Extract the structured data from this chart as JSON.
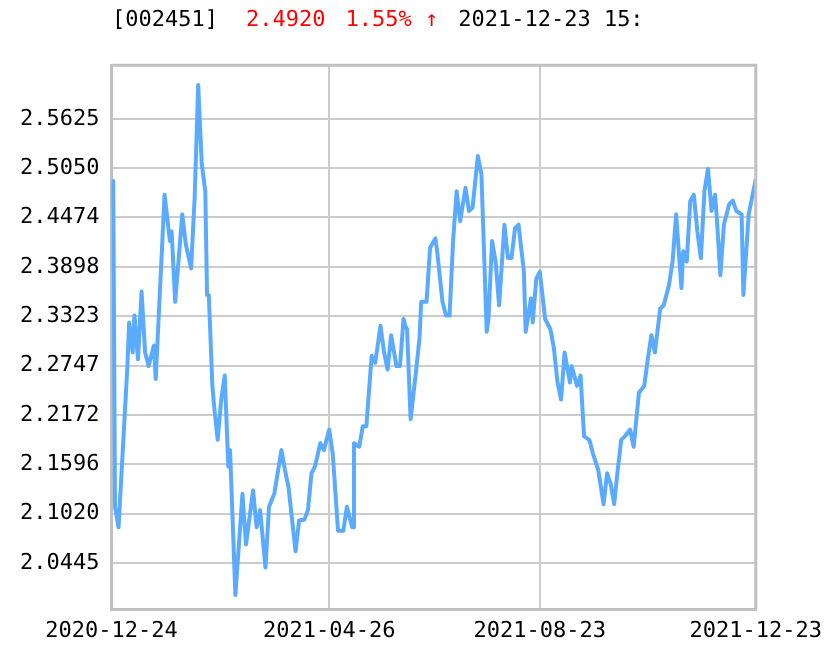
{
  "chart_data": {
    "type": "line",
    "title": "[002451]",
    "annotations": [
      "2.4920",
      "1.55% ↑",
      "2021-12-23 15:"
    ],
    "xlim": [
      "2020-12-24",
      "2021-12-23"
    ],
    "xticks": [
      "2020-12-24",
      "2021-04-26",
      "2021-08-23",
      "2021-12-23"
    ],
    "ylim": [
      1.99,
      2.625
    ],
    "yticks": [
      2.0445,
      {
        "value": 2.102,
        "label": "2.1020"
      },
      2.1596,
      2.2172,
      2.2747,
      2.3323,
      2.3898,
      2.4474,
      {
        "value": 2.505,
        "label": "2.5050"
      },
      2.5625
    ],
    "grid": true,
    "legend": false,
    "marker": "none",
    "line_style": "solid",
    "series": [
      {
        "color": "#5aabff",
        "x": [
          "2020-12-24",
          "2020-12-25",
          "2020-12-26",
          "2020-12-28",
          "2021-01-02",
          "2021-01-03",
          "2021-01-05",
          "2021-01-06",
          "2021-01-08",
          "2021-01-10",
          "2021-01-12",
          "2021-01-14",
          "2021-01-17",
          "2021-01-18",
          "2021-01-20",
          "2021-01-23",
          "2021-01-26",
          "2021-01-27",
          "2021-01-29",
          "2021-02-02",
          "2021-02-04",
          "2021-02-07",
          "2021-02-09",
          "2021-02-11",
          "2021-02-13",
          "2021-02-15",
          "2021-02-16",
          "2021-02-17",
          "2021-02-19",
          "2021-02-20",
          "2021-02-22",
          "2021-02-24",
          "2021-02-26",
          "2021-02-28",
          "2021-03-01",
          "2021-03-04",
          "2021-03-08",
          "2021-03-10",
          "2021-03-14",
          "2021-03-16",
          "2021-03-18",
          "2021-03-21",
          "2021-03-23",
          "2021-03-26",
          "2021-03-30",
          "2021-04-01",
          "2021-04-03",
          "2021-04-07",
          "2021-04-09",
          "2021-04-12",
          "2021-04-14",
          "2021-04-16",
          "2021-04-18",
          "2021-04-21",
          "2021-04-23",
          "2021-04-26",
          "2021-04-28",
          "2021-05-01",
          "2021-05-04",
          "2021-05-06",
          "2021-05-09",
          "2021-05-10",
          "2021-05-13",
          "2021-05-15",
          "2021-05-17",
          "2021-05-20",
          "2021-05-22",
          "2021-05-25",
          "2021-05-27",
          "2021-05-29",
          "2021-05-31",
          "2021-06-03",
          "2021-06-05",
          "2021-06-07",
          "2021-06-08",
          "2021-06-09",
          "2021-06-11",
          "2021-06-14",
          "2021-06-16",
          "2021-06-17",
          "2021-06-20",
          "2021-06-22",
          "2021-06-25",
          "2021-06-26",
          "2021-06-29",
          "2021-07-01",
          "2021-07-03",
          "2021-07-05",
          "2021-07-07",
          "2021-07-09",
          "2021-07-12",
          "2021-07-14",
          "2021-07-16",
          "2021-07-19",
          "2021-07-21",
          "2021-07-24",
          "2021-07-25",
          "2021-07-27",
          "2021-07-29",
          "2021-07-31",
          "2021-08-03",
          "2021-08-05",
          "2021-08-07",
          "2021-08-09",
          "2021-08-11",
          "2021-08-14",
          "2021-08-15",
          "2021-08-18",
          "2021-08-19",
          "2021-08-21",
          "2021-08-23",
          "2021-08-26",
          "2021-08-29",
          "2021-08-31",
          "2021-09-02",
          "2021-09-04",
          "2021-09-06",
          "2021-09-09",
          "2021-09-10",
          "2021-09-13",
          "2021-09-15",
          "2021-09-17",
          "2021-09-20",
          "2021-09-22",
          "2021-09-25",
          "2021-09-28",
          "2021-09-30",
          "2021-10-02",
          "2021-10-04",
          "2021-10-06",
          "2021-10-08",
          "2021-10-10",
          "2021-10-13",
          "2021-10-15",
          "2021-10-18",
          "2021-10-21",
          "2021-10-23",
          "2021-10-25",
          "2021-10-27",
          "2021-10-30",
          "2021-11-01",
          "2021-11-04",
          "2021-11-06",
          "2021-11-08",
          "2021-11-11",
          "2021-11-12",
          "2021-11-14",
          "2021-11-16",
          "2021-11-18",
          "2021-11-20",
          "2021-11-22",
          "2021-11-24",
          "2021-11-26",
          "2021-11-28",
          "2021-11-30",
          "2021-12-01",
          "2021-12-03",
          "2021-12-05",
          "2021-12-08",
          "2021-12-10",
          "2021-12-12",
          "2021-12-15",
          "2021-12-16",
          "2021-12-19",
          "2021-12-23"
        ],
        "values": [
          2.459,
          2.49,
          2.11,
          2.086,
          2.274,
          2.325,
          2.29,
          2.333,
          2.282,
          2.361,
          2.29,
          2.274,
          2.298,
          2.259,
          2.345,
          2.474,
          2.42,
          2.431,
          2.349,
          2.451,
          2.416,
          2.388,
          2.471,
          2.602,
          2.51,
          2.478,
          2.357,
          2.357,
          2.251,
          2.227,
          2.188,
          2.235,
          2.263,
          2.157,
          2.176,
          2.007,
          2.125,
          2.066,
          2.129,
          2.086,
          2.106,
          2.039,
          2.11,
          2.125,
          2.176,
          2.153,
          2.133,
          2.058,
          2.094,
          2.095,
          2.106,
          2.149,
          2.157,
          2.184,
          2.176,
          2.2,
          2.172,
          2.082,
          2.082,
          2.11,
          2.086,
          2.184,
          2.18,
          2.204,
          2.204,
          2.286,
          2.278,
          2.321,
          2.29,
          2.27,
          2.31,
          2.274,
          2.274,
          2.329,
          2.321,
          2.317,
          2.212,
          2.267,
          2.306,
          2.349,
          2.349,
          2.412,
          2.423,
          2.408,
          2.349,
          2.333,
          2.333,
          2.42,
          2.478,
          2.443,
          2.482,
          2.455,
          2.459,
          2.519,
          2.498,
          2.314,
          2.329,
          2.42,
          2.396,
          2.345,
          2.439,
          2.4,
          2.4,
          2.435,
          2.439,
          2.384,
          2.314,
          2.353,
          2.325,
          2.376,
          2.384,
          2.329,
          2.317,
          2.294,
          2.255,
          2.235,
          2.29,
          2.255,
          2.274,
          2.251,
          2.263,
          2.192,
          2.188,
          2.172,
          2.153,
          2.113,
          2.149,
          2.137,
          2.113,
          2.153,
          2.188,
          2.192,
          2.2,
          2.18,
          2.243,
          2.251,
          2.282,
          2.31,
          2.29,
          2.341,
          2.345,
          2.369,
          2.396,
          2.451,
          2.365,
          2.408,
          2.396,
          2.467,
          2.474,
          2.431,
          2.4,
          2.478,
          2.504,
          2.455,
          2.474,
          2.447,
          2.38,
          2.439,
          2.463,
          2.467,
          2.455,
          2.451,
          2.357,
          2.451,
          2.492
        ]
      }
    ]
  }
}
